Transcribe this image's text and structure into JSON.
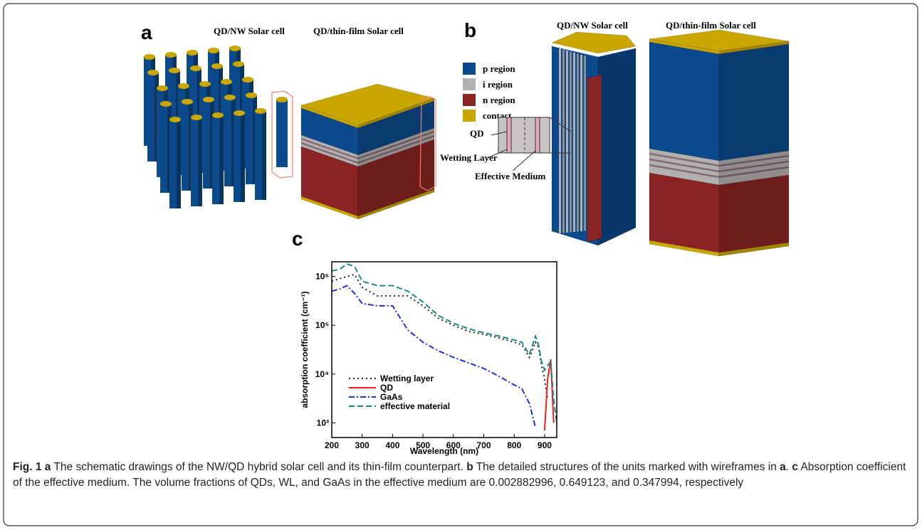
{
  "panel_a": {
    "label": "a",
    "titles": [
      "QD/NW Solar cell",
      "QD/thin-film Solar cell"
    ]
  },
  "panel_b": {
    "label": "b",
    "titles": [
      "QD/NW Solar cell",
      "QD/thin-film Solar cell"
    ],
    "legend": [
      {
        "name": "p region",
        "color": "#0b4a8c"
      },
      {
        "name": "i region",
        "color": "#b4b0b0"
      },
      {
        "name": "n region",
        "color": "#8a2323"
      },
      {
        "name": "contact",
        "color": "#c9a600"
      }
    ],
    "annotations": [
      "QD",
      "Wetting Layer",
      "Effective Medium"
    ]
  },
  "panel_c": {
    "label": "c"
  },
  "chart_data": {
    "type": "line",
    "x_label": "Wavelength (nm)",
    "y_label": "absorption coefficient (cm⁻¹)",
    "log_y": true,
    "x": [
      200,
      225,
      250,
      275,
      300,
      350,
      400,
      450,
      500,
      550,
      600,
      650,
      700,
      750,
      800,
      825,
      850,
      870,
      880,
      890,
      900,
      910,
      920,
      930,
      940
    ],
    "series": [
      {
        "name": "Wetting layer",
        "color": "#222222",
        "style": "dotted",
        "values": [
          800000,
          900000,
          1000000,
          1100000,
          600000,
          400000,
          400000,
          400000,
          250000,
          140000,
          100000,
          75000,
          65000,
          55000,
          45000,
          40000,
          22000,
          45000,
          35000,
          15000,
          8000,
          3000,
          null,
          null,
          null
        ]
      },
      {
        "name": "QD",
        "color": "#e8231f",
        "style": "solid",
        "values": [
          null,
          null,
          null,
          null,
          null,
          null,
          null,
          null,
          null,
          null,
          null,
          null,
          null,
          null,
          null,
          null,
          null,
          null,
          null,
          null,
          700,
          8000,
          20000,
          1000,
          null
        ]
      },
      {
        "name": "GaAs",
        "color": "#1f2fe0",
        "style": "dashdot",
        "values": [
          500000,
          550000,
          650000,
          450000,
          280000,
          250000,
          250000,
          80000,
          45000,
          30000,
          22000,
          17000,
          13000,
          9000,
          6000,
          5000,
          2500,
          800,
          null,
          null,
          null,
          null,
          null,
          null,
          null
        ]
      },
      {
        "name": "effective material",
        "color": "#1d8a8a",
        "style": "dashed",
        "values": [
          1300000,
          1400000,
          1800000,
          1600000,
          800000,
          650000,
          650000,
          500000,
          300000,
          160000,
          110000,
          85000,
          70000,
          60000,
          50000,
          45000,
          25000,
          60000,
          40000,
          18000,
          12000,
          15000,
          18000,
          3000,
          1000
        ]
      }
    ],
    "xlim": [
      200,
      940
    ],
    "ylim": [
      500,
      2000000
    ],
    "xticks": [
      200,
      300,
      400,
      500,
      600,
      700,
      800,
      900
    ],
    "yticks": [
      {
        "value": 1000,
        "label": "10³"
      },
      {
        "value": 10000,
        "label": "10⁴"
      },
      {
        "value": 100000,
        "label": "10⁵"
      },
      {
        "value": 1000000,
        "label": "10⁶"
      }
    ],
    "legend": "lower left"
  },
  "caption": {
    "fig": "Fig. 1",
    "parts": [
      "a",
      " The schematic drawings of the NW/QD hybrid solar cell and its thin-film counterpart. ",
      "b",
      " The detailed structures of the units marked with wireframes in ",
      "a",
      ". ",
      "c",
      " Absorption coefficient of the effective medium. The volume fractions of QDs, WL, and GaAs in the effective medium are 0.002882996, 0.649123, and 0.347994, respectively"
    ]
  }
}
